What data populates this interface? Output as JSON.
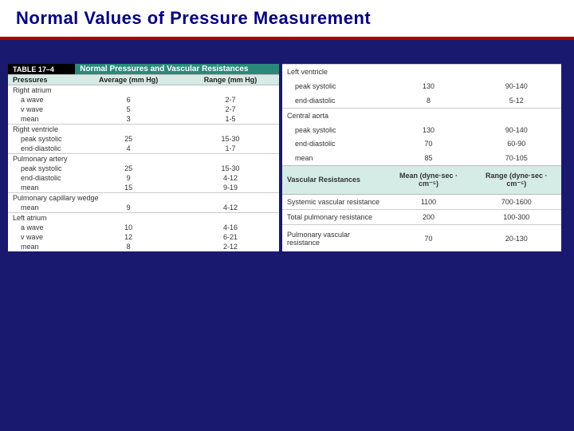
{
  "title": "Normal Values of Pressure Measurement",
  "tableNumber": "TABLE 17–4",
  "tableTitle": "Normal Pressures and Vascular Resistances",
  "leftCols": {
    "c1": "Pressures",
    "c2": "Average (mm Hg)",
    "c3": "Range (mm Hg)"
  },
  "rightCols2": {
    "c1": "Vascular Resistances",
    "c2": "Mean (dyne·sec · cm⁻⁵)",
    "c3": "Range (dyne·sec · cm⁻⁵)"
  },
  "left": {
    "ra": {
      "label": "Right atrium",
      "r1": {
        "l": "a wave",
        "a": "6",
        "r": "2-7"
      },
      "r2": {
        "l": "v wave",
        "a": "5",
        "r": "2-7"
      },
      "r3": {
        "l": "mean",
        "a": "3",
        "r": "1-5"
      }
    },
    "rv": {
      "label": "Right ventricle",
      "r1": {
        "l": "peak systolic",
        "a": "25",
        "r": "15-30"
      },
      "r2": {
        "l": "end-diastolic",
        "a": "4",
        "r": "1-7"
      }
    },
    "pa": {
      "label": "Pulmonary artery",
      "r1": {
        "l": "peak systolic",
        "a": "25",
        "r": "15-30"
      },
      "r2": {
        "l": "end-diastolic",
        "a": "9",
        "r": "4-12"
      },
      "r3": {
        "l": "mean",
        "a": "15",
        "r": "9-19"
      }
    },
    "pcw": {
      "label": "Pulmonary capillary wedge",
      "r1": {
        "l": "mean",
        "a": "9",
        "r": "4-12"
      }
    },
    "la": {
      "label": "Left atrium",
      "r1": {
        "l": "a wave",
        "a": "10",
        "r": "4-16"
      },
      "r2": {
        "l": "v wave",
        "a": "12",
        "r": "6-21"
      },
      "r3": {
        "l": "mean",
        "a": "8",
        "r": "2-12"
      }
    }
  },
  "right": {
    "lv": {
      "label": "Left ventricle",
      "r1": {
        "l": "peak systolic",
        "a": "130",
        "r": "90-140"
      },
      "r2": {
        "l": "end-diastolic",
        "a": "8",
        "r": "5-12"
      }
    },
    "ca": {
      "label": "Central aorta",
      "r1": {
        "l": "peak systolic",
        "a": "130",
        "r": "90-140"
      },
      "r2": {
        "l": "end-diastolic",
        "a": "70",
        "r": "60-90"
      },
      "r3": {
        "l": "mean",
        "a": "85",
        "r": "70-105"
      }
    },
    "svr": {
      "l": "Systemic vascular resistance",
      "a": "1100",
      "r": "700-1600"
    },
    "tpr": {
      "l": "Total pulmonary resistance",
      "a": "200",
      "r": "100-300"
    },
    "pvr": {
      "l": "Pulmonary vascular resistance",
      "a": "70",
      "r": "20-130"
    }
  }
}
